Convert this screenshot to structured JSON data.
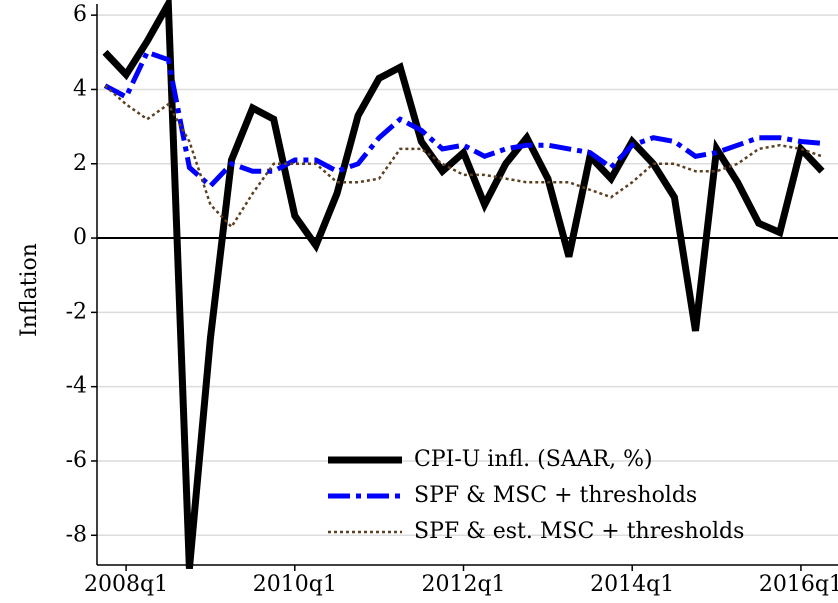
{
  "chart_data": {
    "type": "line",
    "y_label": "Inflation",
    "categories": [
      null,
      "2008q1",
      null,
      null,
      null,
      null,
      null,
      null,
      null,
      "2010q1",
      null,
      null,
      null,
      null,
      null,
      null,
      null,
      "2012q1",
      null,
      null,
      null,
      null,
      null,
      null,
      null,
      "2014q1",
      null,
      null,
      null,
      null,
      null,
      null,
      null,
      "2016q1",
      null
    ],
    "series": [
      {
        "name": "CPI-U infl. (SAAR, %)",
        "color": "#000000",
        "style": "solid",
        "values": [
          5.0,
          4.4,
          5.3,
          6.3,
          -8.9,
          -2.7,
          2.1,
          3.5,
          3.2,
          0.6,
          -0.2,
          1.2,
          3.3,
          4.3,
          4.6,
          2.6,
          1.8,
          2.3,
          0.9,
          2.0,
          2.7,
          1.6,
          -0.5,
          2.2,
          1.6,
          2.6,
          2.0,
          1.1,
          -2.5,
          2.4,
          1.5,
          0.4,
          0.15,
          2.4,
          1.8
        ]
      },
      {
        "name": "SPF & MSC + thresholds",
        "color": "#0000ff",
        "style": "dashdot",
        "values": [
          4.1,
          3.8,
          5.0,
          4.8,
          1.9,
          1.4,
          2.0,
          1.8,
          1.8,
          2.1,
          2.1,
          1.8,
          2.0,
          2.7,
          3.2,
          2.9,
          2.4,
          2.5,
          2.2,
          2.4,
          2.5,
          2.5,
          2.4,
          2.3,
          1.9,
          2.5,
          2.7,
          2.6,
          2.2,
          2.3,
          2.5,
          2.7,
          2.7,
          2.6,
          2.55
        ]
      },
      {
        "name": "SPF & est. MSC + thresholds",
        "color": "#5c4020",
        "style": "dotted",
        "values": [
          4.1,
          3.6,
          3.2,
          3.6,
          2.6,
          0.9,
          0.3,
          1.2,
          2.0,
          2.0,
          2.0,
          1.5,
          1.5,
          1.6,
          2.4,
          2.4,
          2.0,
          1.7,
          1.7,
          1.6,
          1.5,
          1.5,
          1.5,
          1.3,
          1.1,
          1.5,
          2.0,
          2.0,
          1.8,
          1.8,
          2.0,
          2.4,
          2.5,
          2.4,
          2.2
        ]
      }
    ],
    "ylim": [
      -8.8,
      6.3
    ],
    "yticks": [
      -8,
      -6,
      -4,
      -2,
      0,
      2,
      4,
      6
    ],
    "grid": true,
    "legend": "lower right"
  }
}
